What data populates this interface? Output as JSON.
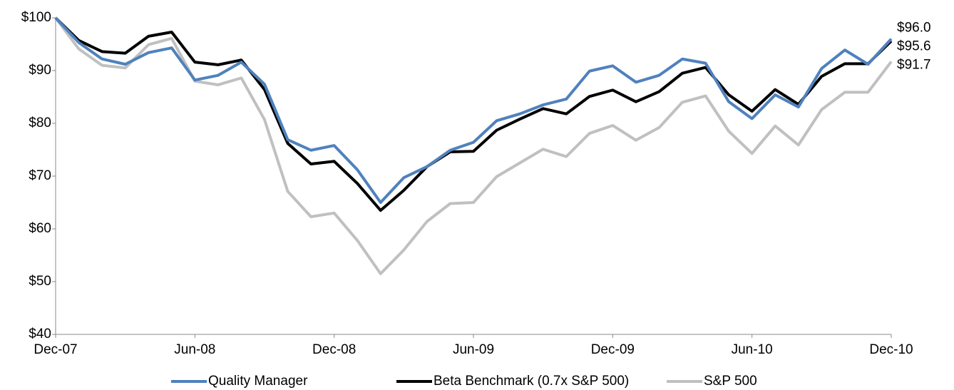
{
  "chart_data": {
    "type": "line",
    "categories": [
      "Dec-07",
      null,
      null,
      null,
      null,
      null,
      "Jun-08",
      null,
      null,
      null,
      null,
      null,
      "Dec-08",
      null,
      null,
      null,
      null,
      null,
      "Jun-09",
      null,
      null,
      null,
      null,
      null,
      "Dec-09",
      null,
      null,
      null,
      null,
      null,
      "Jun-10",
      null,
      null,
      null,
      null,
      null,
      "Dec-10"
    ],
    "series": [
      {
        "name": "Quality Manager",
        "color": "#4f81bd",
        "values": [
          100,
          95.3,
          92.2,
          91.2,
          93.4,
          94.3,
          88.2,
          89.1,
          91.6,
          87.4,
          76.9,
          74.9,
          75.8,
          71.2,
          65.0,
          69.7,
          71.8,
          74.9,
          76.4,
          80.5,
          81.8,
          83.5,
          84.6,
          89.9,
          90.9,
          87.8,
          89.1,
          92.2,
          91.4,
          84.1,
          80.9,
          85.4,
          83.1,
          90.4,
          93.9,
          91.2,
          96.0
        ],
        "value_labels": [
          null,
          null,
          null,
          null,
          null,
          null,
          null,
          null,
          null,
          null,
          null,
          null,
          null,
          null,
          null,
          null,
          null,
          null,
          null,
          null,
          null,
          null,
          null,
          null,
          null,
          null,
          null,
          null,
          null,
          null,
          null,
          null,
          null,
          null,
          null,
          null,
          "$96.0"
        ]
      },
      {
        "name": "Beta Benchmark (0.7x S&P 500)",
        "color": "#000000",
        "values": [
          100,
          95.7,
          93.6,
          93.3,
          96.5,
          97.3,
          91.6,
          91.1,
          92.0,
          86.4,
          76.2,
          72.3,
          72.8,
          68.6,
          63.5,
          67.3,
          71.8,
          74.6,
          74.7,
          78.7,
          80.8,
          82.8,
          81.8,
          85.1,
          86.3,
          84.1,
          86.0,
          89.5,
          90.6,
          85.4,
          82.3,
          86.4,
          83.6,
          88.9,
          91.3,
          91.3,
          95.6
        ],
        "value_labels": [
          null,
          null,
          null,
          null,
          null,
          null,
          null,
          null,
          null,
          null,
          null,
          null,
          null,
          null,
          null,
          null,
          null,
          null,
          null,
          null,
          null,
          null,
          null,
          null,
          null,
          null,
          null,
          null,
          null,
          null,
          null,
          null,
          null,
          null,
          null,
          null,
          "$95.6"
        ]
      },
      {
        "name": "S&P 500",
        "color": "#c0c0c0",
        "values": [
          100,
          94.1,
          91.0,
          90.5,
          94.9,
          96.1,
          88.0,
          87.3,
          88.6,
          80.7,
          67.1,
          62.3,
          63.0,
          57.8,
          51.5,
          56.0,
          61.4,
          64.8,
          65.0,
          69.9,
          72.5,
          75.1,
          73.7,
          78.1,
          79.6,
          76.8,
          79.2,
          84.0,
          85.2,
          78.5,
          74.3,
          79.5,
          75.9,
          82.6,
          85.9,
          85.9,
          91.7
        ],
        "value_labels": [
          null,
          null,
          null,
          null,
          null,
          null,
          null,
          null,
          null,
          null,
          null,
          null,
          null,
          null,
          null,
          null,
          null,
          null,
          null,
          null,
          null,
          null,
          null,
          null,
          null,
          null,
          null,
          null,
          null,
          null,
          null,
          null,
          null,
          null,
          null,
          null,
          "$91.7"
        ]
      }
    ],
    "ylim": [
      40,
      100
    ],
    "yticks": [
      {
        "value": 40,
        "label": "$40"
      },
      {
        "value": 50,
        "label": "$50"
      },
      {
        "value": 60,
        "label": "$60"
      },
      {
        "value": 70,
        "label": "$70"
      },
      {
        "value": 80,
        "label": "$80"
      },
      {
        "value": 90,
        "label": "$90"
      },
      {
        "value": 100,
        "label": "$100"
      }
    ]
  }
}
